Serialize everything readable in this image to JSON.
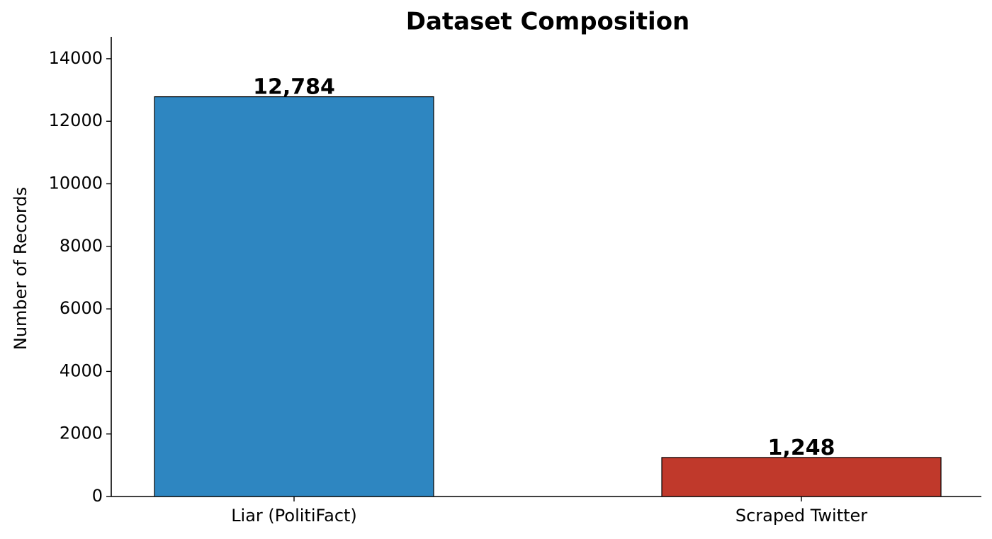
{
  "chart_data": {
    "type": "bar",
    "title": "Dataset Composition",
    "y_label": "Number of Records",
    "categories": [
      "Liar (PolitiFact)",
      "Scraped Twitter"
    ],
    "values": [
      12784,
      1248
    ],
    "value_labels": [
      "12,784",
      "1,248"
    ],
    "colors": [
      "#2e86c1",
      "#c0392b"
    ],
    "ylim": [
      0,
      14700
    ],
    "yticks": [
      0,
      2000,
      4000,
      6000,
      8000,
      10000,
      12000,
      14000
    ],
    "grid": false
  }
}
